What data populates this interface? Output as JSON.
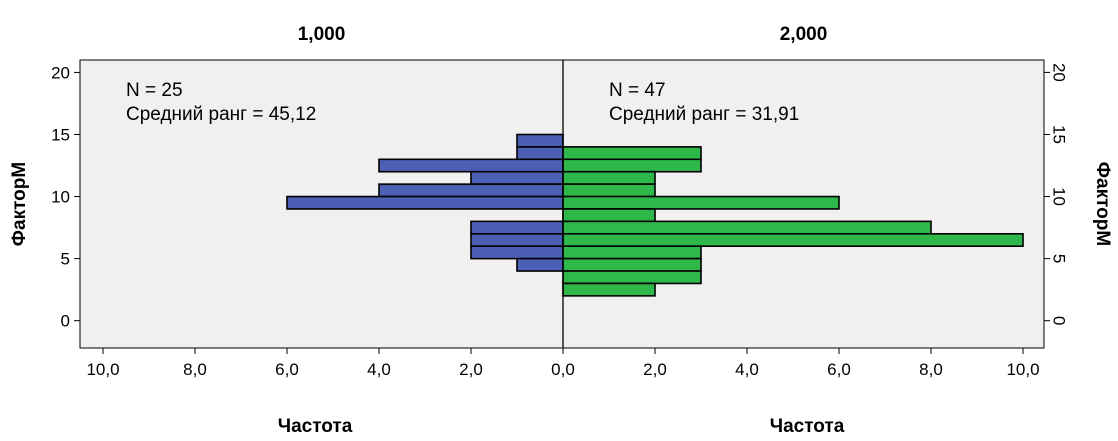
{
  "chart_data": {
    "type": "bar",
    "orientation": "horizontal",
    "layout": "population-pyramid",
    "panels": [
      {
        "title": "1,000",
        "side": "left",
        "color": "#4b5fb5",
        "annotation": {
          "n_label": "N = 25",
          "rank_label": "Средний ранг = 45,12"
        },
        "bins": [
          {
            "y": 14.5,
            "count": 1
          },
          {
            "y": 13.5,
            "count": 1
          },
          {
            "y": 12.5,
            "count": 4
          },
          {
            "y": 11.5,
            "count": 2
          },
          {
            "y": 10.5,
            "count": 4
          },
          {
            "y": 9.5,
            "count": 6
          },
          {
            "y": 7.5,
            "count": 2
          },
          {
            "y": 6.5,
            "count": 2
          },
          {
            "y": 5.5,
            "count": 2
          },
          {
            "y": 4.5,
            "count": 1
          }
        ]
      },
      {
        "title": "2,000",
        "side": "right",
        "color": "#2eb84a",
        "annotation": {
          "n_label": "N = 47",
          "rank_label": "Средний ранг = 31,91"
        },
        "bins": [
          {
            "y": 13.5,
            "count": 3
          },
          {
            "y": 12.5,
            "count": 3
          },
          {
            "y": 11.5,
            "count": 2
          },
          {
            "y": 10.5,
            "count": 2
          },
          {
            "y": 9.5,
            "count": 6
          },
          {
            "y": 8.5,
            "count": 2
          },
          {
            "y": 7.5,
            "count": 8
          },
          {
            "y": 6.5,
            "count": 10
          },
          {
            "y": 5.5,
            "count": 3
          },
          {
            "y": 4.5,
            "count": 3
          },
          {
            "y": 3.5,
            "count": 3
          },
          {
            "y": 2.5,
            "count": 2
          }
        ]
      }
    ],
    "bin_width": 1,
    "ylabel_left": "ФакторМ",
    "ylabel_right": "ФакторМ",
    "xlabel_left": "Частота",
    "xlabel_right": "Частота",
    "y_ticks": [
      0,
      5,
      10,
      15,
      20
    ],
    "y_tick_labels": [
      "0",
      "5",
      "10",
      "15",
      "20"
    ],
    "ylim": [
      -2.2,
      21
    ],
    "x_ticks_left": [
      "10,0",
      "8,0",
      "6,0",
      "4,0",
      "2,0",
      "0,0"
    ],
    "x_ticks_right": [
      "0,0",
      "2,0",
      "4,0",
      "6,0",
      "8,0",
      "10,0"
    ],
    "x_tick_values_left": [
      10,
      8,
      6,
      4,
      2,
      0
    ],
    "x_tick_values_right": [
      0,
      2,
      4,
      6,
      8,
      10
    ],
    "xlim": [
      0,
      10.5
    ],
    "plot_background": "#f0f0f0",
    "grid": false
  }
}
